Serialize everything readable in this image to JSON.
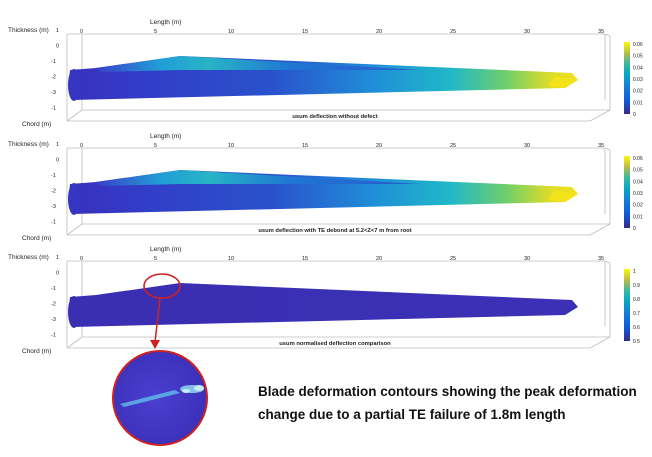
{
  "panels": [
    {
      "thickness_label": "Thickness (m)",
      "chord_label": "Chord (m)",
      "length_label": "Length (m)",
      "length_ticks": [
        "0",
        "5",
        "10",
        "15",
        "20",
        "25",
        "30",
        "35"
      ],
      "thickness_ticks": [
        "1",
        "0",
        "-1",
        "-2",
        "-3",
        "-1"
      ],
      "caption": "usum deflection without defect",
      "colorbar_ticks": [
        "0.06",
        "0.05",
        "0.04",
        "0.03",
        "0.02",
        "0.01",
        "0"
      ]
    },
    {
      "thickness_label": "Thickness (m)",
      "chord_label": "Chord (m)",
      "length_label": "Length (m)",
      "length_ticks": [
        "0",
        "5",
        "10",
        "15",
        "20",
        "25",
        "30",
        "35"
      ],
      "thickness_ticks": [
        "1",
        "0",
        "-1",
        "-2",
        "-3",
        "-1"
      ],
      "caption": "usum deflection with TE debond at 5.2<Z<7 m from root",
      "colorbar_ticks": [
        "0.06",
        "0.05",
        "0.04",
        "0.03",
        "0.02",
        "0.01",
        "0"
      ]
    },
    {
      "thickness_label": "Thickness (m)",
      "chord_label": "Chord (m)",
      "length_label": "Length (m)",
      "length_ticks": [
        "0",
        "5",
        "10",
        "15",
        "20",
        "25",
        "30",
        "35"
      ],
      "thickness_ticks": [
        "1",
        "0",
        "-1",
        "-2",
        "-3",
        "-1"
      ],
      "caption": "usum normalised deflection comparison",
      "colorbar_ticks": [
        "1",
        "0.9",
        "0.8",
        "0.7",
        "0.6",
        "0.5"
      ]
    }
  ],
  "annotation": {
    "line1": "Blade deformation contours showing the peak deformation",
    "line2": "change due to a partial TE failure of 1.8m length",
    "highlight_color": "#cc2222"
  },
  "colors": {
    "field_low": "#3b2fb8",
    "field_mid": "#1e9bd7",
    "field_high": "#f2e21e",
    "frame": "#bdbdbd"
  }
}
